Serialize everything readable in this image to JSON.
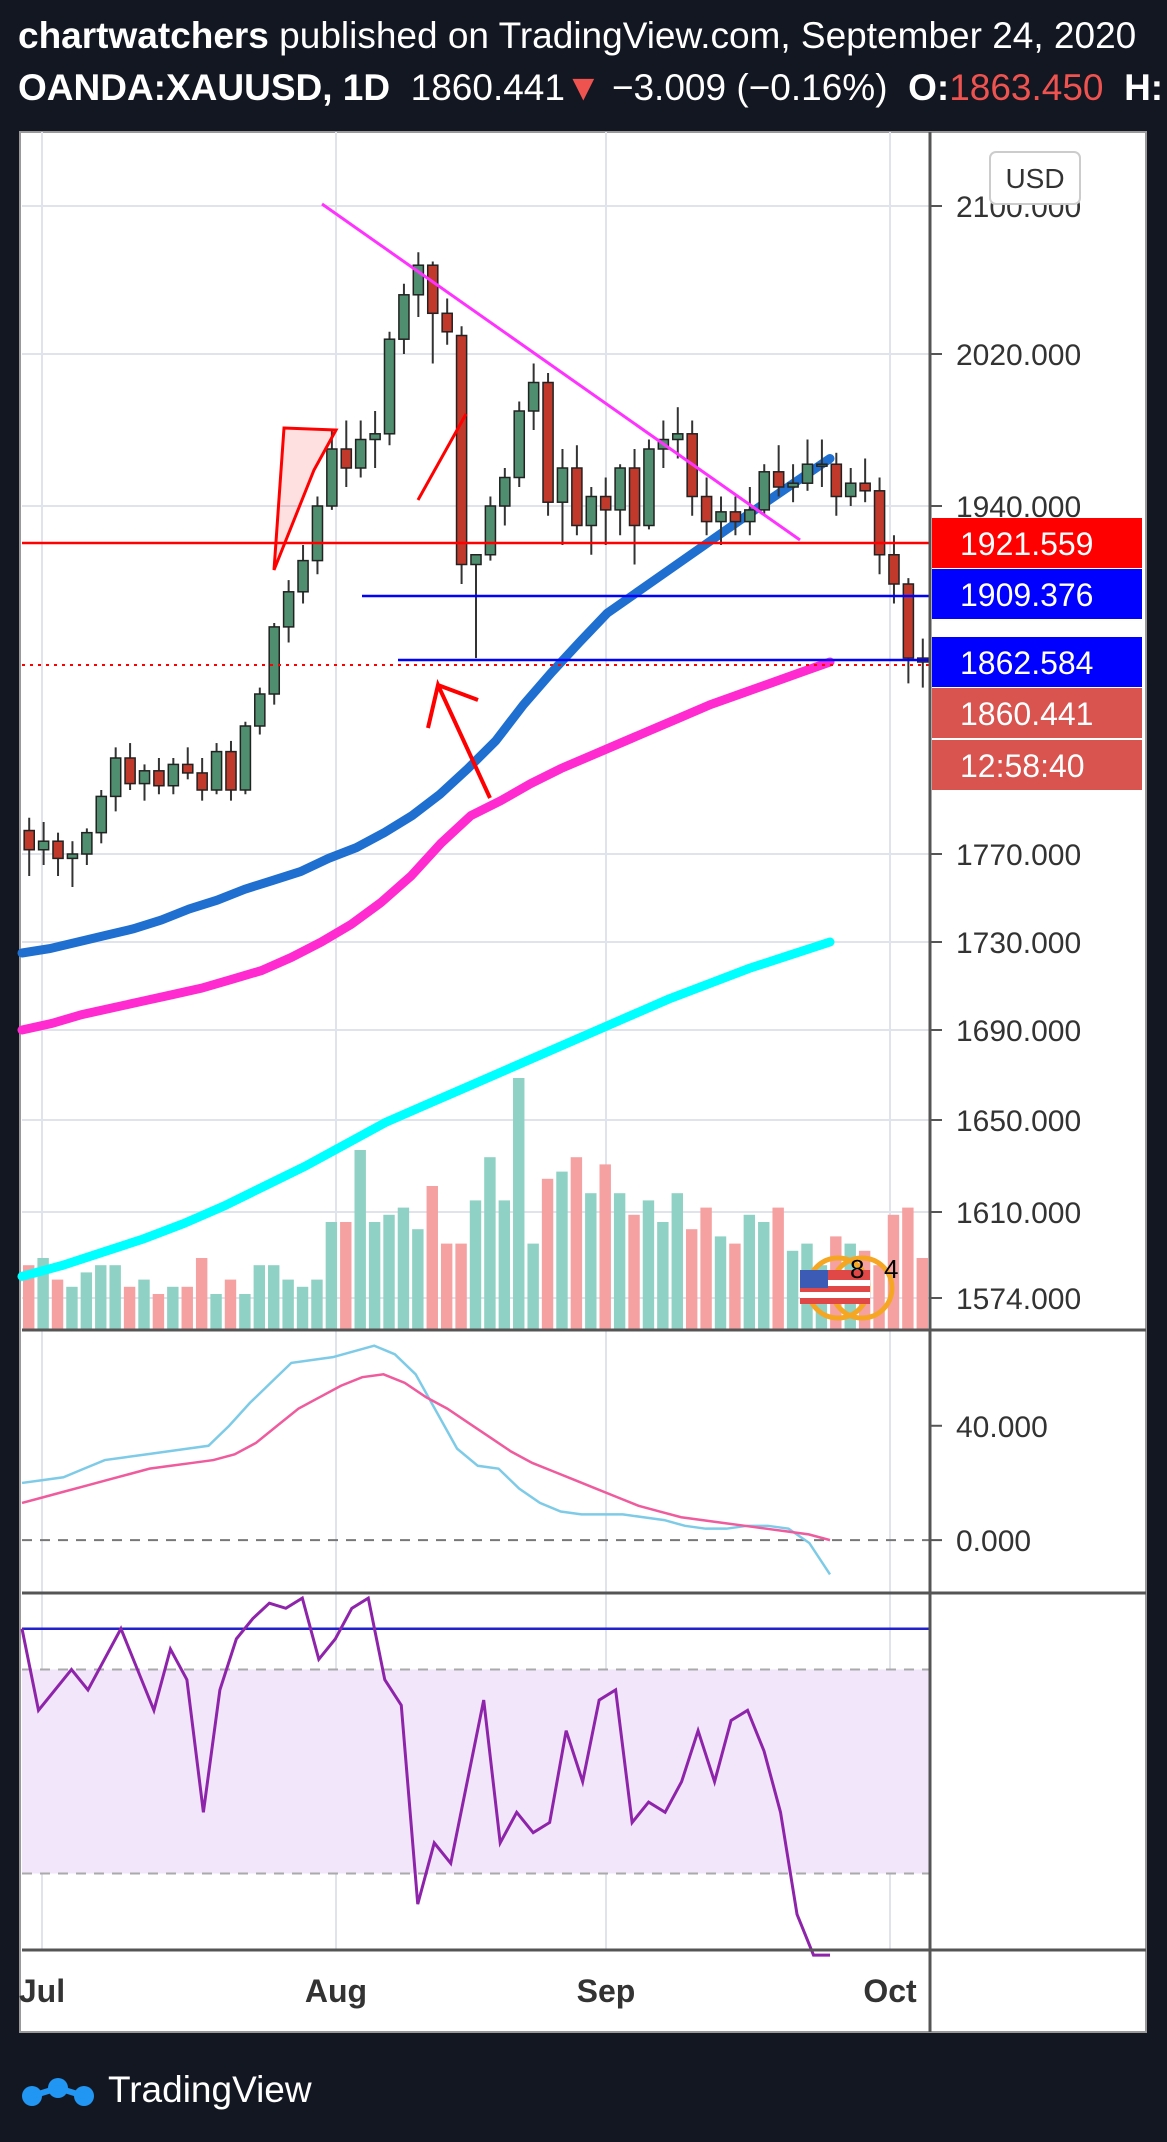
{
  "header": {
    "author": "chartwatchers",
    "published": " published on TradingView.com, September 24, 2020",
    "symbol": "OANDA:XAUUSD, 1D",
    "last": "1860.441",
    "down_arrow": "▼",
    "change": "−3.009 (−0.16%)",
    "open_label": "O:",
    "open_value": "1863.450",
    "high_label": "H:"
  },
  "currency_button": "USD",
  "price_labels": [
    {
      "text": "1921.559",
      "value": 1921.559,
      "color": "#ff0000"
    },
    {
      "text": "1909.376",
      "value": 1909.376,
      "color": "#0000ff"
    },
    {
      "text": "1862.584",
      "value": 1862.584,
      "color": "#0000ff"
    },
    {
      "text": "1860.441",
      "value": 1860.441,
      "color": "#d9534f"
    },
    {
      "text": "12:58:40",
      "value": 1830,
      "color": "#d9534f"
    }
  ],
  "footer": {
    "brand": "TradingView"
  },
  "icons": {
    "logo": "tradingview-logo-icon",
    "flag": "us-flag-icon"
  },
  "event_labels": [
    "8",
    "4"
  ],
  "colors": {
    "background": "#131722",
    "up": "#4f8f6f",
    "down": "#c0392b",
    "sma_blue": "#1e6fd0",
    "sma_magenta": "#ff2bd1",
    "sma_cyan": "#00ffff",
    "trendline": "#ff33ff",
    "red_line": "#ff0000",
    "blue_line": "#0000ff"
  },
  "chart_data": [
    {
      "type": "candlestick",
      "title": "OANDA:XAUUSD, 1D",
      "x_ticks": [
        "Jul",
        "Aug",
        "Sep",
        "Oct"
      ],
      "y_ticks": [
        "2100.000",
        "2020.000",
        "1940.000",
        "1770.000",
        "1730.000",
        "1690.000",
        "1650.000",
        "1610.000",
        "1574.000"
      ],
      "ylim": [
        1560,
        2120
      ],
      "grid": true,
      "candles": [
        [
          1781,
          1787,
          1760,
          1772
        ],
        [
          1772,
          1785,
          1765,
          1776
        ],
        [
          1776,
          1780,
          1760,
          1768
        ],
        [
          1768,
          1776,
          1755,
          1770
        ],
        [
          1770,
          1782,
          1765,
          1780
        ],
        [
          1780,
          1800,
          1775,
          1797
        ],
        [
          1797,
          1820,
          1790,
          1815
        ],
        [
          1815,
          1822,
          1800,
          1803
        ],
        [
          1803,
          1812,
          1795,
          1809
        ],
        [
          1809,
          1815,
          1798,
          1802
        ],
        [
          1802,
          1815,
          1798,
          1812
        ],
        [
          1812,
          1820,
          1805,
          1808
        ],
        [
          1808,
          1815,
          1795,
          1800
        ],
        [
          1800,
          1822,
          1798,
          1818
        ],
        [
          1818,
          1823,
          1795,
          1800
        ],
        [
          1800,
          1832,
          1798,
          1830
        ],
        [
          1830,
          1848,
          1826,
          1845
        ],
        [
          1845,
          1880,
          1840,
          1878
        ],
        [
          1878,
          1902,
          1870,
          1896
        ],
        [
          1896,
          1920,
          1890,
          1912
        ],
        [
          1912,
          1945,
          1905,
          1940
        ],
        [
          1940,
          1980,
          1938,
          1970
        ],
        [
          1970,
          1985,
          1950,
          1960
        ],
        [
          1960,
          1985,
          1955,
          1975
        ],
        [
          1975,
          1990,
          1960,
          1978
        ],
        [
          1978,
          2032,
          1972,
          2028
        ],
        [
          2028,
          2058,
          2020,
          2052
        ],
        [
          2052,
          2075,
          2040,
          2068
        ],
        [
          2068,
          2070,
          2015,
          2042
        ],
        [
          2042,
          2050,
          2025,
          2032
        ],
        [
          2030,
          2035,
          1900,
          1910
        ],
        [
          1910,
          1915,
          1862,
          1915
        ],
        [
          1915,
          1945,
          1912,
          1940
        ],
        [
          1940,
          1960,
          1930,
          1955
        ],
        [
          1955,
          1995,
          1950,
          1990
        ],
        [
          1990,
          2015,
          1980,
          2005
        ],
        [
          2005,
          2010,
          1935,
          1942
        ],
        [
          1942,
          1970,
          1920,
          1960
        ],
        [
          1960,
          1972,
          1925,
          1930
        ],
        [
          1930,
          1950,
          1915,
          1945
        ],
        [
          1945,
          1955,
          1920,
          1938
        ],
        [
          1938,
          1962,
          1925,
          1960
        ],
        [
          1960,
          1970,
          1910,
          1930
        ],
        [
          1930,
          1975,
          1928,
          1970
        ],
        [
          1970,
          1985,
          1960,
          1975
        ],
        [
          1975,
          1992,
          1965,
          1978
        ],
        [
          1978,
          1985,
          1935,
          1945
        ],
        [
          1945,
          1955,
          1925,
          1932
        ],
        [
          1932,
          1945,
          1920,
          1937
        ],
        [
          1937,
          1945,
          1925,
          1932
        ],
        [
          1932,
          1950,
          1925,
          1938
        ],
        [
          1938,
          1962,
          1935,
          1958
        ],
        [
          1958,
          1972,
          1945,
          1950
        ],
        [
          1950,
          1962,
          1942,
          1952
        ],
        [
          1952,
          1975,
          1948,
          1962
        ],
        [
          1962,
          1975,
          1950,
          1962
        ],
        [
          1962,
          1968,
          1935,
          1945
        ],
        [
          1945,
          1960,
          1940,
          1952
        ],
        [
          1952,
          1965,
          1942,
          1948
        ],
        [
          1948,
          1955,
          1905,
          1915
        ],
        [
          1915,
          1925,
          1890,
          1900
        ],
        [
          1900,
          1903,
          1850,
          1862
        ],
        [
          1862,
          1872,
          1848,
          1860
        ]
      ],
      "series": [
        {
          "name": "",
          "values": [
            1725,
            1727,
            1730,
            1733,
            1736,
            1740,
            1745,
            1749,
            1754,
            1758,
            1762,
            1768,
            1773,
            1780,
            1788,
            1798,
            1810,
            1823,
            1840,
            1855,
            1870,
            1885,
            1895,
            1905,
            1915,
            1925,
            1935,
            1945,
            1955,
            1965
          ]
        },
        {
          "name": "",
          "values": [
            1690,
            1693,
            1697,
            1700,
            1703,
            1706,
            1709,
            1713,
            1717,
            1723,
            1730,
            1738,
            1748,
            1760,
            1775,
            1788,
            1795,
            1803,
            1810,
            1816,
            1822,
            1828,
            1834,
            1840,
            1845,
            1850,
            1855,
            1860
          ]
        },
        {
          "name": "",
          "values": [
            1578,
            1583,
            1589,
            1595,
            1602,
            1610,
            1619,
            1628,
            1638,
            1648,
            1656,
            1664,
            1672,
            1680,
            1688,
            1696,
            1704,
            1711,
            1718,
            1724,
            1730
          ]
        }
      ],
      "volume": [
        18,
        20,
        14,
        12,
        16,
        18,
        18,
        12,
        14,
        10,
        12,
        12,
        20,
        10,
        14,
        10,
        18,
        18,
        14,
        12,
        14,
        30,
        30,
        50,
        30,
        32,
        34,
        28,
        40,
        24,
        24,
        36,
        48,
        36,
        70,
        24,
        42,
        44,
        48,
        38,
        46,
        38,
        32,
        36,
        30,
        38,
        28,
        34,
        26,
        24,
        32,
        30,
        34,
        22,
        24,
        18,
        26,
        24,
        22,
        18,
        32,
        34,
        20,
        26,
        32,
        44,
        46
      ]
    },
    {
      "type": "line",
      "y_ticks": [
        "40.000",
        "0.000"
      ],
      "ylim": [
        -15,
        70
      ],
      "series": [
        {
          "name": "",
          "values": [
            20,
            21,
            22,
            25,
            28,
            29,
            30,
            31,
            32,
            33,
            40,
            48,
            55,
            62,
            63,
            64,
            66,
            68,
            65,
            58,
            45,
            32,
            26,
            25,
            18,
            13,
            10,
            9,
            9,
            9,
            8,
            7,
            5,
            4,
            4,
            5,
            5,
            4,
            -1,
            -12
          ]
        },
        {
          "name": "",
          "values": [
            13,
            15,
            17,
            19,
            21,
            23,
            25,
            26,
            27,
            28,
            30,
            34,
            40,
            46,
            50,
            54,
            57,
            58,
            55,
            50,
            46,
            41,
            36,
            31,
            27,
            24,
            21,
            18,
            15,
            12,
            10,
            8,
            7,
            6,
            5,
            4,
            3,
            2,
            0
          ]
        }
      ]
    },
    {
      "type": "line",
      "ylim": [
        15,
        85
      ],
      "band": [
        30,
        70
      ],
      "level": 78,
      "series": [
        {
          "name": "",
          "values": [
            78,
            62,
            66,
            70,
            66,
            72,
            78,
            70,
            62,
            74,
            68,
            42,
            66,
            76,
            80,
            83,
            82,
            84,
            72,
            76,
            82,
            84,
            68,
            63,
            24,
            36,
            32,
            48,
            64,
            36,
            42,
            38,
            40,
            58,
            48,
            64,
            66,
            40,
            44,
            42,
            48,
            58,
            48,
            60,
            62,
            54,
            42,
            22,
            14,
            14
          ]
        }
      ]
    }
  ]
}
